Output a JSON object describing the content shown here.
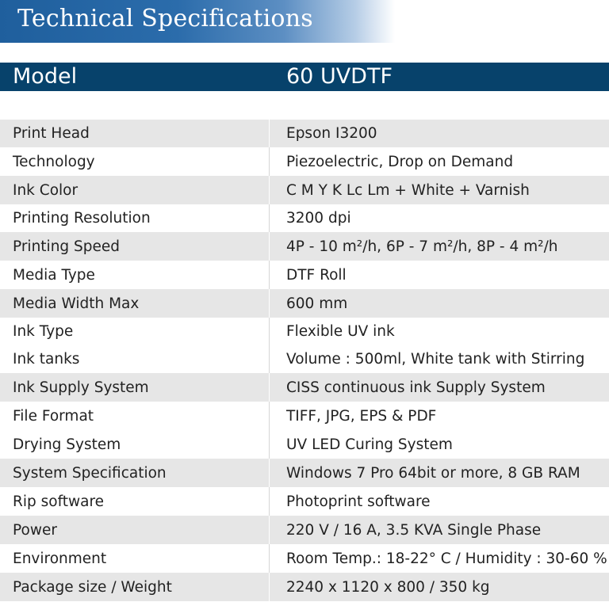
{
  "header": {
    "title": "Technical Specifications"
  },
  "model": {
    "label": "Model",
    "value": "60 UVDTF"
  },
  "specs": [
    {
      "label": "Print Head",
      "value": "Epson I3200"
    },
    {
      "label": "Technology",
      "value": "Piezoelectric, Drop on Demand"
    },
    {
      "label": "Ink Color",
      "value": "C M Y K Lc Lm + White + Varnish"
    },
    {
      "label": "Printing Resolution",
      "value": "3200 dpi"
    },
    {
      "label": "Printing Speed",
      "value": "4P - 10 m²/h, 6P - 7 m²/h, 8P - 4 m²/h"
    },
    {
      "label": "Media Type",
      "value": "DTF Roll"
    },
    {
      "label": "Media Width Max",
      "value": "600 mm"
    },
    {
      "label": "Ink Type",
      "value": "Flexible UV ink"
    },
    {
      "label": "Ink tanks",
      "value": "Volume : 500ml, White tank with Stirring"
    },
    {
      "label": "Ink Supply System",
      "value": "CISS continuous ink  Supply System"
    },
    {
      "label": "File Format",
      "value": "TIFF, JPG, EPS & PDF"
    },
    {
      "label": "Drying System",
      "value": "UV LED Curing System"
    },
    {
      "label": "System Specification",
      "value": "Windows 7 Pro 64bit or more, 8 GB RAM"
    },
    {
      "label": "Rip software",
      "value": "Photoprint software"
    },
    {
      "label": "Power",
      "value": "220 V / 16 A, 3.5 KVA Single Phase"
    },
    {
      "label": "Environment",
      "value": "Room Temp.: 18-22° C / Humidity : 30-60 %"
    },
    {
      "label": "Package size / Weight",
      "value": "2240 x 1120 x 800 / 350 kg"
    }
  ],
  "colors": {
    "banner_blue": "#2b6cab",
    "model_bar": "#07426b",
    "row_shade": "#e6e6e6"
  }
}
